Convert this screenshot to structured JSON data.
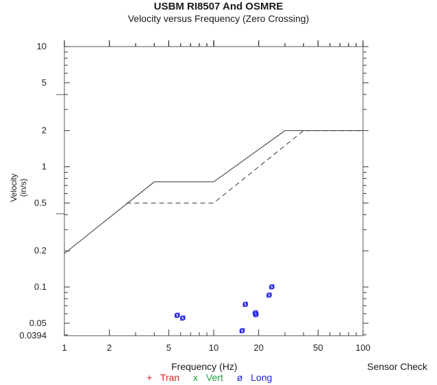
{
  "chart_data": {
    "type": "scatter",
    "title": "USBM RI8507 And OSMRE",
    "subtitle": "Velocity versus Frequency (Zero Crossing)",
    "xlabel": "Frequency (Hz)",
    "ylabel": "Velocity (in/s)",
    "xscale": "log",
    "yscale": "log",
    "xlim": [
      1,
      100
    ],
    "ylim": [
      0.0394,
      10
    ],
    "x_tick_labels": [
      "1",
      "2",
      "5",
      "10",
      "20",
      "50",
      "100"
    ],
    "y_tick_labels": [
      "10",
      "5",
      "2",
      "1",
      "0.5",
      "0.2",
      "0.1",
      "0.05",
      "0.0394"
    ],
    "limit_curves": [
      {
        "style": "solid",
        "x": [
          1,
          4,
          10,
          30,
          100
        ],
        "y": [
          0.19,
          0.75,
          0.75,
          2.0,
          2.0
        ]
      },
      {
        "style": "dashed",
        "x": [
          2.6,
          10,
          40,
          100
        ],
        "y": [
          0.5,
          0.5,
          2.0,
          2.0
        ]
      }
    ],
    "series": [
      {
        "name": "Tran",
        "marker": "+",
        "color": "#e02020",
        "points": []
      },
      {
        "name": "Vert",
        "marker": "x",
        "color": "#20a040",
        "points": []
      },
      {
        "name": "Long",
        "marker": "ø",
        "color": "#2020e0",
        "points": [
          [
            5.7,
            0.059
          ],
          [
            6.2,
            0.056
          ],
          [
            15.5,
            0.044
          ],
          [
            16.3,
            0.073
          ],
          [
            19.0,
            0.062
          ],
          [
            19.2,
            0.06
          ],
          [
            23.5,
            0.087
          ],
          [
            24.5,
            0.102
          ]
        ]
      }
    ],
    "legend": [
      {
        "symbol": "+",
        "label": "Tran",
        "color": "#e02020"
      },
      {
        "symbol": "x",
        "label": "Vert",
        "color": "#20a040"
      },
      {
        "symbol": "ø",
        "label": "Long",
        "color": "#2020e0"
      }
    ],
    "annotation": "Sensor Check",
    "grid": false
  }
}
